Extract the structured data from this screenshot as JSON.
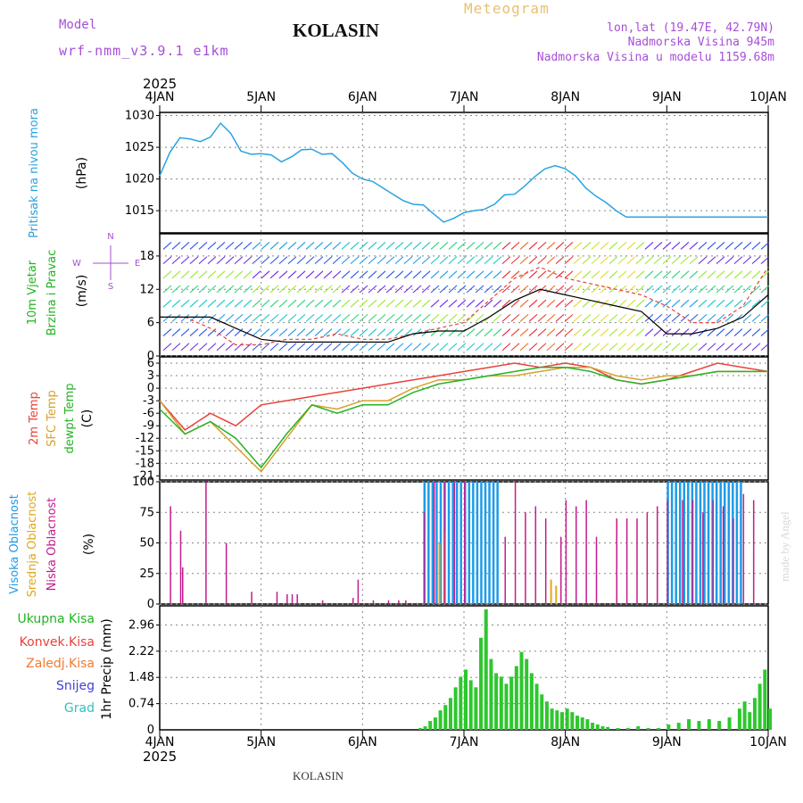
{
  "header": {
    "model_label": "Model",
    "model_name": "wrf-nmm_v3.9.1  e1km",
    "station": "KOLASIN",
    "meteogram": "Meteogram",
    "lonlat": "lon,lat (19.47E, 42.79N)",
    "elevation": "Nadmorska Visina 945m",
    "model_elevation": "Nadmorska Visina u modelu 1159.68m",
    "footer_station": "KOLASIN",
    "signature": "made by Angel"
  },
  "colors": {
    "pressure": "#29a3e0",
    "t2m": "#e8433a",
    "sfc": "#d9a02a",
    "dewpt": "#26b326",
    "high_cloud": "#1e9be8",
    "mid_cloud": "#e0a81c",
    "low_cloud": "#c41c8c",
    "precip_total": "#2ec72e",
    "purple_text": "#a64fd6"
  },
  "chart_data": [
    {
      "type": "line",
      "panel": "pressure",
      "year": "2025",
      "date_ticks": [
        "4JAN",
        "5JAN",
        "6JAN",
        "7JAN",
        "8JAN",
        "9JAN",
        "10JAN"
      ],
      "ylabel": [
        "Pritisak na nivou mora",
        "(hPa)"
      ],
      "yticks": [
        1015,
        1020,
        1025,
        1030
      ],
      "ylim": [
        1011.5,
        1030.5
      ],
      "x": [
        0,
        0.1,
        0.2,
        0.3,
        0.4,
        0.5,
        0.6,
        0.7,
        0.8,
        0.9,
        1,
        1.1,
        1.2,
        1.3,
        1.4,
        1.5,
        1.6,
        1.7,
        1.8,
        1.9,
        2,
        2.1,
        2.2,
        2.3,
        2.4,
        2.5,
        2.6,
        2.7,
        2.8,
        2.9,
        3,
        3.1,
        3.2,
        3.3,
        3.4,
        3.5,
        3.6,
        3.7,
        3.8,
        3.9,
        4,
        4.1,
        4.2,
        4.3,
        4.4,
        4.5,
        4.6,
        4.7,
        4.8,
        4.9,
        5,
        5.1,
        5.2,
        5.3,
        5.4,
        5.5,
        5.6,
        5.7,
        5.8,
        5.9,
        6
      ],
      "values": [
        1020.5,
        1024.2,
        1026.5,
        1026.3,
        1025.9,
        1026.6,
        1028.8,
        1027.2,
        1024.4,
        1023.9,
        1024.0,
        1023.8,
        1022.7,
        1023.5,
        1024.6,
        1024.7,
        1023.9,
        1024.0,
        1022.6,
        1020.9,
        1020.0,
        1019.6,
        1018.6,
        1017.6,
        1016.6,
        1016.0,
        1015.9,
        1014.5,
        1013.2,
        1013.8,
        1014.7,
        1015.0,
        1015.2,
        1016.0,
        1017.5,
        1017.6,
        1018.9,
        1020.4,
        1021.6,
        1022.1,
        1021.6,
        1020.5,
        1018.6,
        1017.3,
        1016.3,
        1015.0,
        1014.0,
        1014.0,
        1014.0,
        1014.0,
        1014.0,
        1014.0,
        1014.0,
        1014.0,
        1014.0,
        1014.0,
        1014.0,
        1014.0,
        1014.0,
        1014.0,
        1014.0
      ]
    },
    {
      "type": "line",
      "panel": "wind",
      "ylabel": [
        "10m Vjetar",
        "Brzina i Pravac",
        "(m/s)"
      ],
      "compass": [
        "N",
        "W",
        "E",
        "S"
      ],
      "yticks": [
        0,
        6,
        12,
        18
      ],
      "ylim": [
        0,
        22
      ],
      "x": [
        0,
        0.25,
        0.5,
        0.75,
        1,
        1.25,
        1.5,
        1.75,
        2,
        2.25,
        2.5,
        2.75,
        3,
        3.25,
        3.5,
        3.75,
        4,
        4.25,
        4.5,
        4.75,
        5,
        5.25,
        5.5,
        5.75,
        6
      ],
      "series": [
        {
          "name": "sustained",
          "values": [
            7,
            7,
            7,
            5,
            3,
            2.5,
            2.5,
            2.5,
            2.5,
            2.5,
            4,
            4.5,
            4.5,
            7,
            10,
            12,
            11,
            10,
            9,
            8,
            4,
            4,
            5,
            7,
            11
          ]
        },
        {
          "name": "gust",
          "values": [
            7,
            7,
            5,
            2,
            2,
            3,
            3,
            4,
            3,
            3,
            4,
            5,
            6,
            10,
            14,
            16,
            14,
            13,
            12,
            11,
            9,
            6,
            6,
            9,
            16
          ]
        }
      ]
    },
    {
      "type": "line",
      "panel": "temperature",
      "ylabel": [
        "2m Temp",
        "SFC Temp",
        "dewpt Temp",
        "(C)"
      ],
      "yticks": [
        6,
        3,
        0,
        -3,
        -6,
        -9,
        -12,
        -15,
        -18,
        -21
      ],
      "ylim": [
        -22,
        7.5
      ],
      "x": [
        0,
        0.25,
        0.5,
        0.75,
        1,
        1.25,
        1.5,
        1.75,
        2,
        2.25,
        2.5,
        2.75,
        3,
        3.25,
        3.5,
        3.75,
        4,
        4.25,
        4.5,
        4.75,
        5,
        5.25,
        5.5,
        5.75,
        6
      ],
      "series": [
        {
          "name": "2m Temp",
          "values": [
            -3,
            -10,
            -6,
            -9,
            -4,
            -3,
            -2,
            -1,
            0,
            1,
            2,
            3,
            4,
            5,
            6,
            5,
            6,
            5,
            2,
            1,
            2,
            4,
            6,
            5,
            4
          ]
        },
        {
          "name": "SFC Temp",
          "values": [
            -3,
            -11,
            -8,
            -14,
            -20,
            -12,
            -4,
            -5,
            -3,
            -3,
            0,
            2,
            2,
            3,
            3,
            4,
            5,
            5,
            3,
            2,
            3,
            3,
            4,
            4,
            4
          ]
        },
        {
          "name": "dewpt Temp",
          "values": [
            -5,
            -11,
            -8,
            -12,
            -19,
            -11,
            -4,
            -6,
            -4,
            -4,
            -1,
            1,
            2,
            3,
            4,
            5,
            5,
            4,
            2,
            1,
            2,
            3,
            4,
            4,
            4
          ]
        }
      ]
    },
    {
      "type": "bar",
      "panel": "cloud",
      "ylabel": [
        "Visoka Oblacnost",
        "Srednja Oblacnost",
        "Niska Oblacnost",
        "(%)"
      ],
      "yticks": [
        0,
        25,
        50,
        75,
        100
      ],
      "ylim": [
        0,
        100
      ],
      "series": [
        {
          "name": "Niska Oblacnost",
          "x": [
            0.1,
            0.2,
            0.22,
            0.45,
            0.65,
            0.9,
            1.15,
            1.25,
            1.3,
            1.35,
            1.95,
            1.9,
            1.6,
            2.1,
            2.25,
            2.35,
            2.42,
            2.6,
            2.7,
            2.8,
            2.9,
            3.0,
            3.4,
            3.5,
            3.6,
            3.7,
            3.8,
            3.95,
            4.0,
            4.1,
            4.2,
            4.3,
            4.5,
            4.6,
            4.7,
            4.8,
            4.9,
            5.0,
            5.15,
            5.25,
            5.35,
            5.45,
            5.55,
            5.65,
            5.75,
            5.85
          ],
          "values": [
            80,
            60,
            30,
            100,
            50,
            10,
            10,
            8,
            8,
            8,
            20,
            5,
            3,
            3,
            3,
            3,
            3,
            75,
            100,
            100,
            100,
            100,
            55,
            100,
            75,
            80,
            70,
            55,
            85,
            80,
            85,
            55,
            70,
            70,
            70,
            75,
            80,
            85,
            85,
            85,
            75,
            85,
            80,
            70,
            90,
            85
          ]
        },
        {
          "name": "Visoka Oblacnost",
          "ranges": [
            [
              2.6,
              3.35
            ],
            [
              5.0,
              5.75
            ]
          ],
          "values": 100
        },
        {
          "name": "Srednja Oblacnost",
          "x": [
            3.85,
            3.9,
            2.75,
            2.8
          ],
          "values": [
            20,
            15,
            50,
            60
          ]
        }
      ]
    },
    {
      "type": "bar",
      "panel": "precip",
      "ylabel": [
        "Ukupna Kisa",
        "Konvek.Kisa",
        "Zaledj.Kisa",
        "Snijeg",
        "Grad",
        "1hr Precip (mm)"
      ],
      "legend": [
        "Ukupna Kisa",
        "Konvek.Kisa",
        "Zaledj.Kisa",
        "Snijeg",
        "Grad"
      ],
      "yticks": [
        0.74,
        1.48,
        2.22,
        2.96
      ],
      "ylim": [
        0,
        3.5
      ],
      "x": [
        2.55,
        2.6,
        2.65,
        2.7,
        2.75,
        2.8,
        2.85,
        2.9,
        2.95,
        3.0,
        3.05,
        3.1,
        3.15,
        3.2,
        3.25,
        3.3,
        3.35,
        3.4,
        3.45,
        3.5,
        3.55,
        3.6,
        3.65,
        3.7,
        3.75,
        3.8,
        3.85,
        3.9,
        3.95,
        4.0,
        4.05,
        4.1,
        4.15,
        4.2,
        4.25,
        4.3,
        4.35,
        4.4,
        4.5,
        4.6,
        4.7,
        4.8,
        4.9,
        5.0,
        5.1,
        5.2,
        5.3,
        5.4,
        5.5,
        5.6,
        5.7,
        5.75,
        5.8,
        5.85,
        5.9,
        5.95,
        6.0
      ],
      "values": [
        0.05,
        0.1,
        0.25,
        0.35,
        0.55,
        0.7,
        0.9,
        1.2,
        1.5,
        1.7,
        1.4,
        1.2,
        2.6,
        3.4,
        2.0,
        1.6,
        1.5,
        1.3,
        1.5,
        1.8,
        2.2,
        2.0,
        1.6,
        1.3,
        1.0,
        0.8,
        0.6,
        0.55,
        0.5,
        0.6,
        0.5,
        0.4,
        0.35,
        0.3,
        0.2,
        0.15,
        0.1,
        0.08,
        0.05,
        0.05,
        0.1,
        0.05,
        0.05,
        0.15,
        0.2,
        0.3,
        0.25,
        0.3,
        0.25,
        0.35,
        0.6,
        0.8,
        0.5,
        0.9,
        1.3,
        1.7,
        0.6
      ]
    }
  ]
}
